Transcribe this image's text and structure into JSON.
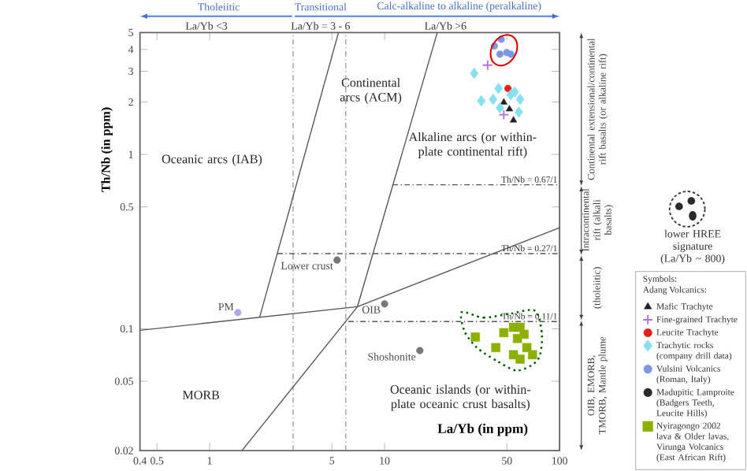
{
  "chart_data": {
    "type": "scatter",
    "xlabel": "La/Yb (in ppm)",
    "ylabel": "Th/Nb (in ppm)",
    "log": "xy",
    "xlim": [
      0.4,
      100
    ],
    "ylim": [
      0.02,
      5
    ],
    "xticks": [
      0.4,
      0.5,
      1,
      5,
      10,
      50,
      100
    ],
    "yticks": [
      0.02,
      0.05,
      0.1,
      0.5,
      1,
      2,
      3,
      4,
      5
    ],
    "legend": "bottom right",
    "legend_title": "Symbols:",
    "ref_lines": [
      {
        "axis": "x",
        "value": 3,
        "color": "#8a8a8a",
        "line_style": "dashed"
      },
      {
        "axis": "x",
        "value": 6,
        "color": "#8a8a8a",
        "line_style": "dashed"
      }
    ],
    "series": [
      {
        "name": "Mafic Trachyte",
        "marker": "triangle",
        "color": "#222222",
        "x": [
          48,
          51.7,
          54.5
        ],
        "values": [
          1.99,
          1.82,
          1.57
        ]
      },
      {
        "name": "Fine-grained Trachyte",
        "marker": "cross",
        "color": "#b070e0",
        "x": [
          38.8,
          48
        ],
        "values": [
          3.25,
          1.69
        ]
      },
      {
        "name": "Leucite Trachyte",
        "marker": "circle",
        "color": "#e8201c",
        "x": [
          50.7
        ],
        "values": [
          2.39
        ]
      },
      {
        "name": "Trachytic rocks (company drill data)",
        "marker": "diamond",
        "color": "#86e0f2",
        "x": [
          32.5,
          35.7,
          41.7,
          44.8,
          55.4,
          59.5,
          52.6,
          58.5,
          45.6
        ],
        "values": [
          2.92,
          2.03,
          2.07,
          2.39,
          2.28,
          2.07,
          2.2,
          1.75,
          1.85
        ]
      },
      {
        "name": "Vulsini Volcanics (Roman, Italy)",
        "marker": "circle",
        "color": "#7d97e6",
        "x": [
          42.4,
          45.6,
          49.9,
          52.6,
          46.4
        ],
        "values": [
          4.19,
          3.76,
          3.84,
          3.76,
          4.58
        ]
      },
      {
        "name": "Madupitic Lamproite (Badgers Teeth, Leucite Hills)",
        "marker": "circle",
        "color": "#2a2a2a"
      },
      {
        "name": "Nyiragongo 2002 lava & Older lavas, Virunga Volcanics (East African Rift)",
        "marker": "square",
        "color": "#8db000",
        "x": [
          33,
          43.2,
          48,
          54.5,
          59.5,
          57.4,
          65,
          70,
          59.5,
          54.5,
          62.7
        ],
        "values": [
          0.0897,
          0.078,
          0.095,
          0.102,
          0.102,
          0.088,
          0.078,
          0.071,
          0.067,
          0.071,
          0.093
        ]
      },
      {
        "name": "Lower crust",
        "marker": "circle",
        "color": "#777777",
        "x": [
          5.35
        ],
        "values": [
          0.248
        ]
      },
      {
        "name": "OIB",
        "marker": "circle",
        "color": "#777777",
        "x": [
          10
        ],
        "values": [
          0.139
        ]
      },
      {
        "name": "Shoshonite",
        "marker": "circle",
        "color": "#777777",
        "x": [
          15.9
        ],
        "values": [
          0.075
        ]
      },
      {
        "name": "PM",
        "marker": "circle",
        "color": "#b4a6e6",
        "x": [
          1.45
        ],
        "values": [
          0.124
        ]
      },
      {
        "type": "line",
        "color": "#555555",
        "line_style": "solid",
        "x": [
          0.4,
          7.0,
          100
        ],
        "values": [
          0.098,
          0.134,
          0.38
        ]
      },
      {
        "type": "line",
        "color": "#555555",
        "line_style": "solid",
        "x": [
          1.93,
          5.45
        ],
        "values": [
          0.116,
          5
        ]
      },
      {
        "type": "line",
        "color": "#555555",
        "line_style": "solid",
        "x": [
          1.53,
          7.0,
          20
        ],
        "values": [
          0.02,
          0.134,
          5
        ]
      },
      {
        "name": "Th/Nb = 0.67/1",
        "type": "line",
        "color": "#555555",
        "line_style": "dashed",
        "x": [
          11.1,
          100
        ],
        "values": [
          0.67,
          0.67
        ]
      },
      {
        "name": "Th/Nb = 0.27/1",
        "type": "line",
        "color": "#555555",
        "line_style": "dashed",
        "x": [
          2.44,
          100
        ],
        "values": [
          0.27,
          0.27
        ]
      },
      {
        "name": "Th/Nb = 0.11/1",
        "type": "line",
        "color": "#555555",
        "line_style": "dashed",
        "x": [
          6.2,
          100
        ],
        "values": [
          0.11,
          0.11
        ]
      }
    ],
    "annotations": [
      "Oceanic arcs (IAB)",
      "Continental arcs (ACM)",
      "Alkaline arcs (or within-plate continental rift)",
      "MORB",
      "Oceanic islands (or within-plate oceanic crust basalts)",
      "Tholeiitic",
      "Transitional",
      "Calc-alkaline to alkaline (peralkaline)",
      "La/Yb <3",
      "La/Yb = 3 - 6",
      "La/Yb >6",
      "Continental extensional/continental rift basalts (or alkaline rift)",
      "Intracontinental rift (alkali basalts)",
      "(tholeiitic)",
      "OIB, EMORB, TMORB, Mantle plume",
      "lower HREE signature (La/Yb ~ 800)",
      "Adang Volcanics:"
    ]
  }
}
